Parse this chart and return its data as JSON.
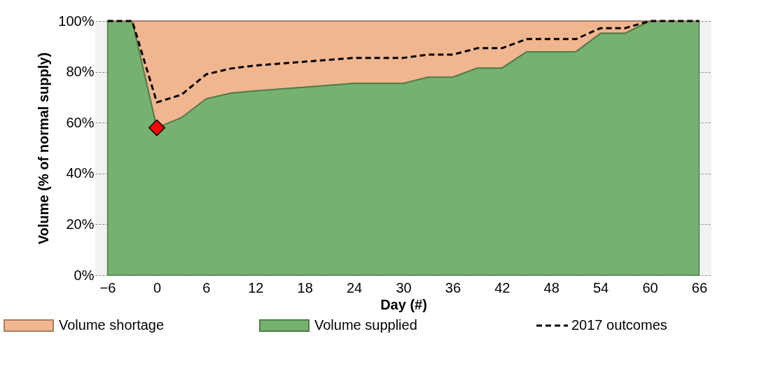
{
  "chart_data": {
    "type": "area",
    "xlabel": "Day (#)",
    "ylabel": "Volume  (% of normal supply)",
    "stacked": true,
    "x": [
      -6,
      -3,
      0,
      3,
      6,
      9,
      12,
      18,
      24,
      30,
      33,
      36,
      39,
      42,
      45,
      51,
      54,
      57,
      60,
      66
    ],
    "series": [
      {
        "name": "Volume supplied",
        "color": "#76b26f",
        "values": [
          100,
          100,
          58,
          62,
          69.4,
          71.6,
          72.5,
          74,
          75.5,
          75.5,
          77.9,
          77.9,
          81.5,
          81.5,
          87.9,
          87.9,
          95.2,
          95.2,
          100,
          100
        ]
      },
      {
        "name": "Volume shortage",
        "color": "#f0b690",
        "values": [
          0,
          0,
          42,
          38,
          30.6,
          28.4,
          27.5,
          26,
          24.5,
          24.5,
          22.1,
          22.1,
          18.5,
          18.5,
          12.1,
          12.1,
          4.8,
          4.8,
          0,
          0
        ]
      },
      {
        "name": "2017 outcomes",
        "type": "line",
        "color": "#000000",
        "line_style": "dashed",
        "marker": "none",
        "values": [
          100,
          100,
          68,
          71,
          79,
          81.3,
          82.5,
          84,
          85.5,
          85.5,
          86.8,
          86.8,
          89.3,
          89.3,
          92.9,
          92.9,
          97.2,
          97.2,
          100,
          100
        ]
      },
      {
        "type": "scatter",
        "color": "#ff0000",
        "marker": "diamond",
        "x": [
          0
        ],
        "values": [
          58
        ]
      }
    ],
    "xlim": [
      -7.5,
      67.5
    ],
    "xticks": [
      -6,
      0,
      6,
      12,
      18,
      24,
      30,
      36,
      42,
      48,
      54,
      60,
      66
    ],
    "ylim": [
      0,
      100
    ],
    "yticks": [
      {
        "value": 0,
        "label": "0%"
      },
      {
        "value": 20,
        "label": "20%"
      },
      {
        "value": 40,
        "label": "40%"
      },
      {
        "value": 60,
        "label": "60%"
      },
      {
        "value": 80,
        "label": "80%"
      },
      {
        "value": 100,
        "label": "100%"
      }
    ],
    "grid": "y",
    "legend": "bottom"
  }
}
